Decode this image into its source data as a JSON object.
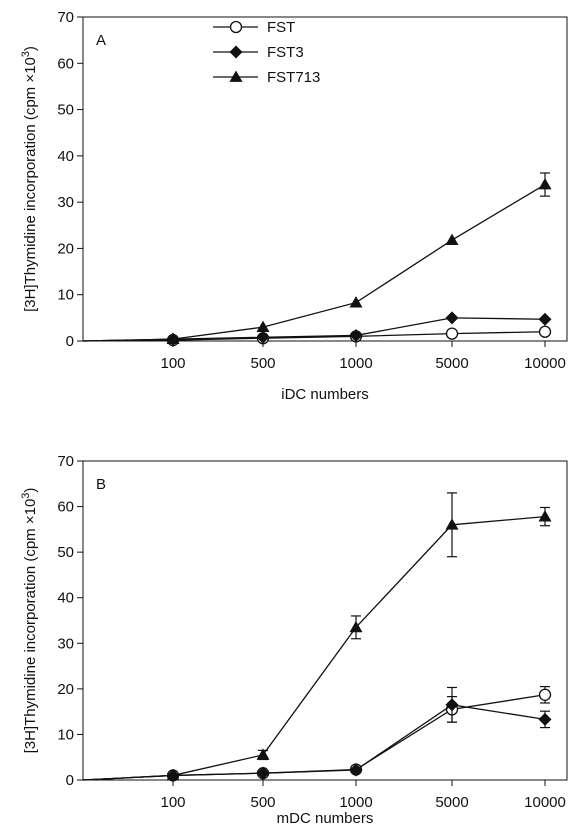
{
  "chart_data": [
    {
      "type": "line",
      "panel_label": "A",
      "xlabel": "iDC numbers",
      "ylabel": "[3H]Thymidine incorporation (cpm ×10",
      "ylabel_sup": "3",
      "ylabel_end": ")",
      "categories": [
        "0",
        "100",
        "500",
        "1000",
        "5000",
        "10000"
      ],
      "tick_labels_x": [
        "100",
        "500",
        "1000",
        "5000",
        "10000"
      ],
      "ylim": [
        0,
        70
      ],
      "yticks": [
        0,
        10,
        20,
        30,
        40,
        50,
        60,
        70
      ],
      "legend_position": "top-center",
      "series": [
        {
          "name": "FST",
          "marker": "open-circle",
          "values": [
            0,
            0.2,
            0.6,
            1.0,
            1.6,
            2.0
          ],
          "errors": [
            0,
            0,
            0,
            0,
            0,
            0
          ]
        },
        {
          "name": "FST3",
          "marker": "diamond",
          "values": [
            0,
            0.4,
            0.8,
            1.2,
            5.0,
            4.7
          ],
          "errors": [
            0,
            0,
            0,
            0,
            0,
            0
          ]
        },
        {
          "name": "FST713",
          "marker": "triangle",
          "values": [
            0,
            0.4,
            3.0,
            8.3,
            21.8,
            33.8
          ],
          "errors": [
            0,
            0,
            0,
            0,
            0,
            2.5
          ]
        }
      ]
    },
    {
      "type": "line",
      "panel_label": "B",
      "xlabel": "mDC numbers",
      "ylabel": "[3H]Thymidine incorporation (cpm ×10",
      "ylabel_sup": "3",
      "ylabel_end": ")",
      "categories": [
        "0",
        "100",
        "500",
        "1000",
        "5000",
        "10000"
      ],
      "tick_labels_x": [
        "100",
        "500",
        "1000",
        "5000",
        "10000"
      ],
      "ylim": [
        0,
        70
      ],
      "yticks": [
        0,
        10,
        20,
        30,
        40,
        50,
        60,
        70
      ],
      "series": [
        {
          "name": "FST",
          "marker": "open-circle",
          "values": [
            0,
            1.0,
            1.5,
            2.3,
            15.5,
            18.7
          ],
          "errors": [
            0,
            0,
            0,
            0,
            2.8,
            1.8
          ]
        },
        {
          "name": "FST3",
          "marker": "diamond",
          "values": [
            0,
            1.0,
            1.5,
            2.2,
            16.5,
            13.3
          ],
          "errors": [
            0,
            0,
            0,
            0,
            3.8,
            1.8
          ]
        },
        {
          "name": "FST713",
          "marker": "triangle",
          "values": [
            0,
            1.0,
            5.5,
            33.5,
            56.0,
            57.8
          ],
          "errors": [
            0,
            0,
            1.0,
            2.5,
            7.0,
            2.0
          ]
        }
      ]
    }
  ]
}
